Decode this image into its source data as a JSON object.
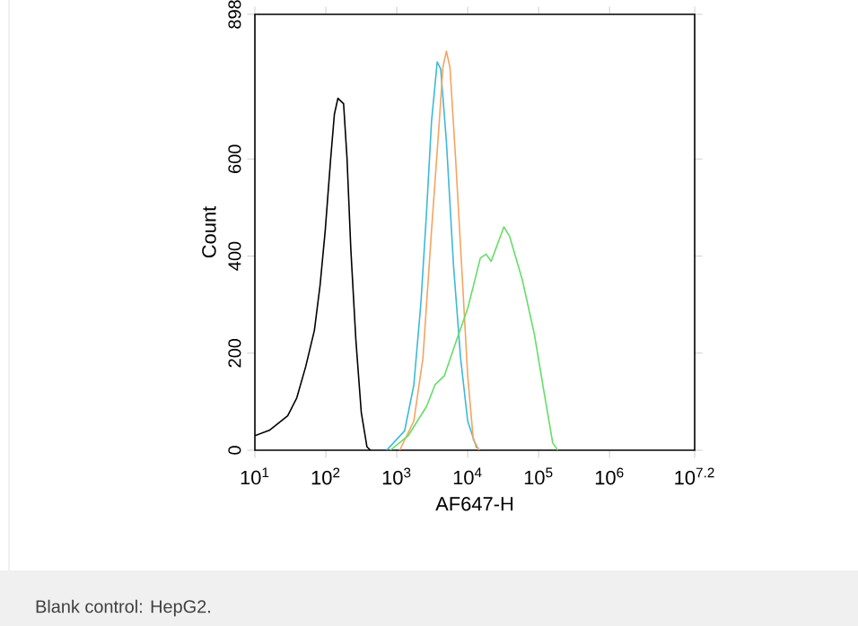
{
  "chart_data": {
    "type": "line",
    "xlabel": "AF647-H",
    "ylabel": "Count",
    "log": "x",
    "xlim": [
      10,
      15848932
    ],
    "ylim": [
      0,
      898
    ],
    "xticks": [
      {
        "value": 10,
        "label": "10$^{1}$"
      },
      {
        "value": 100,
        "label": "10$^{2}$"
      },
      {
        "value": 1000,
        "label": "10$^{3}$"
      },
      {
        "value": 10000,
        "label": "10$^{4}$"
      },
      {
        "value": 100000,
        "label": "10$^{5}$"
      },
      {
        "value": 1000000,
        "label": "10$^{6}$"
      },
      {
        "value": 15848932,
        "label": "10$^{7.2}$"
      }
    ],
    "yticks": [
      0,
      200,
      400,
      600,
      898
    ],
    "series": [
      {
        "color": "#000000",
        "x": [
          10,
          16,
          29,
          39,
          52,
          69,
          83,
          98,
          117,
          132,
          148,
          178,
          199,
          225,
          265,
          316,
          380,
          427
        ],
        "values": [
          30,
          41,
          71,
          108,
          172,
          247,
          340,
          452,
          600,
          692,
          725,
          714,
          602,
          415,
          228,
          78,
          7,
          0
        ]
      },
      {
        "color": "#3db8d8",
        "x": [
          720,
          1290,
          1740,
          2190,
          2630,
          3090,
          3720,
          4170,
          5010,
          6310,
          7940,
          10000,
          13400
        ],
        "values": [
          0,
          40,
          134,
          303,
          490,
          677,
          800,
          785,
          636,
          381,
          190,
          60,
          4
        ]
      },
      {
        "color": "#f4a460",
        "x": [
          1100,
          1740,
          2340,
          3090,
          3980,
          4470,
          5010,
          5620,
          6760,
          8510,
          10000,
          12000,
          14500
        ],
        "values": [
          0,
          60,
          190,
          452,
          677,
          789,
          822,
          789,
          600,
          340,
          153,
          22,
          0
        ]
      },
      {
        "color": "#66dd66",
        "x": [
          810,
          1450,
          2630,
          3470,
          4680,
          6610,
          10000,
          15100,
          18200,
          21400,
          32400,
          38900,
          58900,
          87100,
          117000,
          158000,
          186000
        ],
        "values": [
          0,
          30,
          90,
          135,
          153,
          217,
          292,
          396,
          404,
          389,
          460,
          441,
          351,
          239,
          127,
          15,
          0
        ]
      }
    ],
    "annotations": [
      "Blank control: HepG2."
    ]
  }
}
